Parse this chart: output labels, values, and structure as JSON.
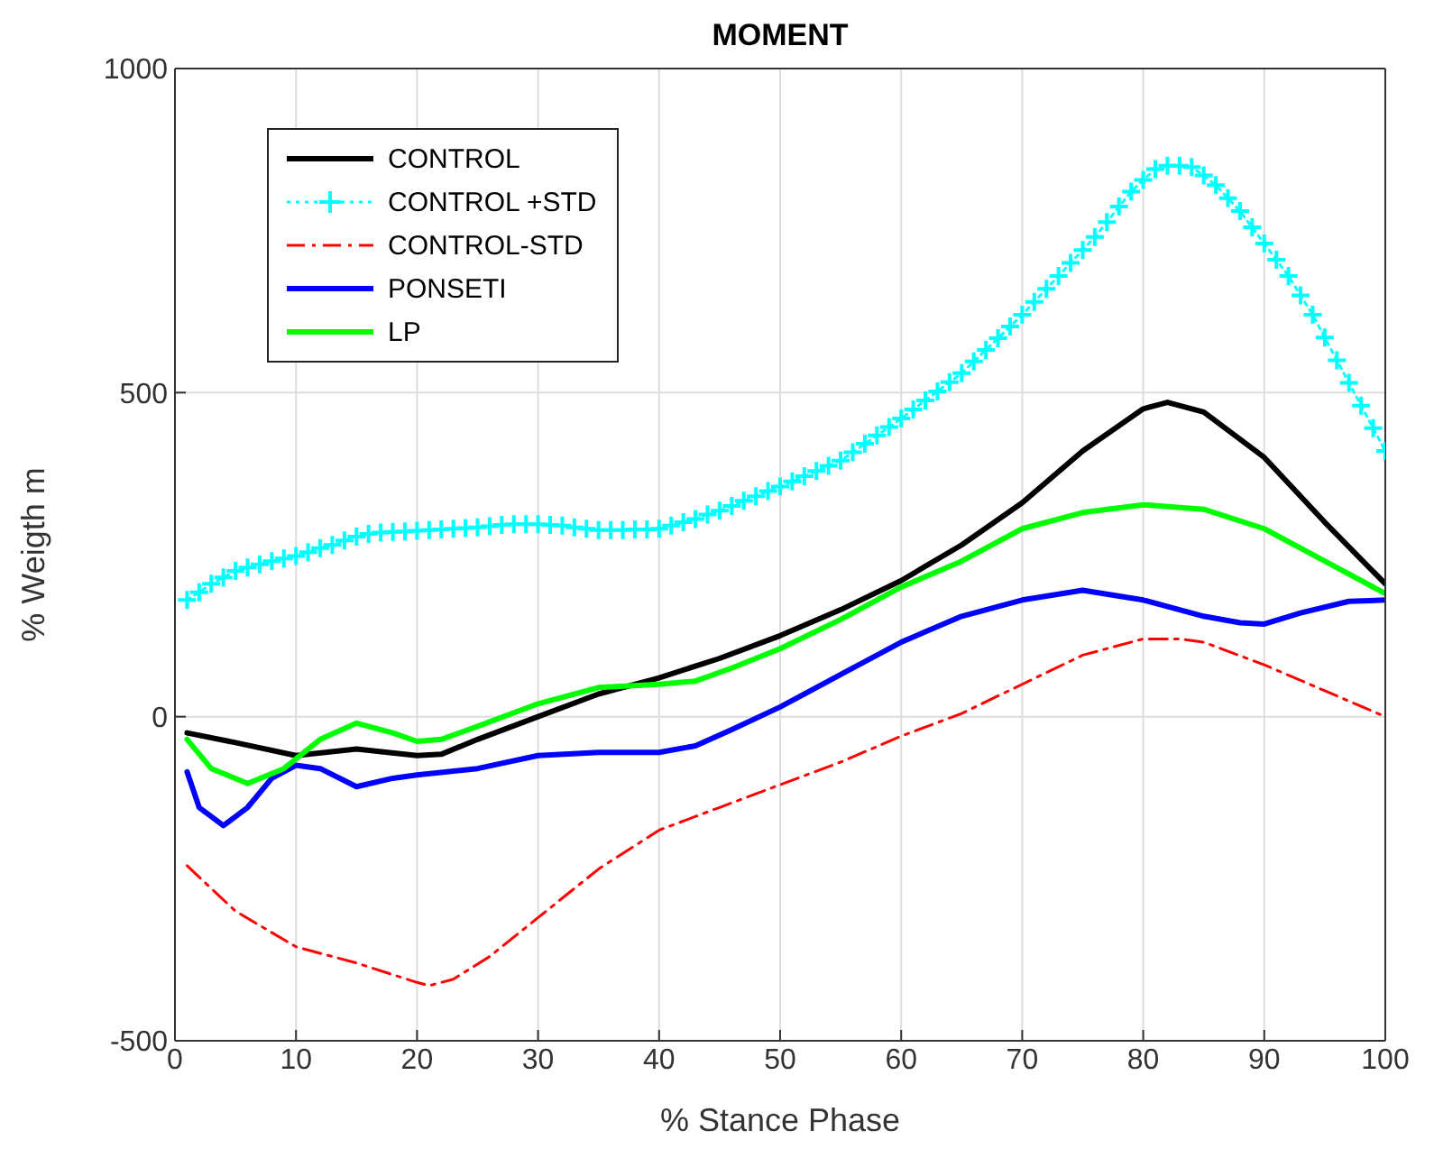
{
  "chart_data": {
    "type": "line",
    "title": "MOMENT",
    "xlabel": "% Stance Phase",
    "ylabel": "% Weigth m",
    "xlim": [
      0,
      100
    ],
    "xticks": [
      0,
      10,
      20,
      30,
      40,
      50,
      60,
      70,
      80,
      90,
      100
    ],
    "ylim": [
      -500,
      1000
    ],
    "yticks": [
      -500,
      0,
      500,
      1000
    ],
    "grid": true,
    "legend": "top left",
    "series": [
      {
        "name": "CONTROL",
        "color": "#000000",
        "line_style": "solid",
        "marker": "none",
        "x": [
          1,
          5,
          10,
          15,
          20,
          22,
          25,
          30,
          35,
          40,
          45,
          50,
          55,
          60,
          65,
          70,
          75,
          80,
          82,
          85,
          90,
          95,
          100
        ],
        "values": [
          -25,
          -40,
          -60,
          -50,
          -60,
          -58,
          -35,
          0,
          35,
          60,
          90,
          125,
          165,
          210,
          265,
          330,
          410,
          475,
          485,
          470,
          400,
          300,
          205
        ]
      },
      {
        "name": "CONTROL +STD",
        "color": "#00ffff",
        "line_style": "dotted",
        "marker": "cross",
        "x": [
          1,
          2,
          3,
          4,
          5,
          6,
          7,
          8,
          9,
          10,
          11,
          12,
          13,
          14,
          15,
          16,
          17,
          18,
          19,
          20,
          21,
          22,
          23,
          24,
          25,
          26,
          27,
          28,
          29,
          30,
          31,
          32,
          33,
          34,
          35,
          36,
          37,
          38,
          39,
          40,
          41,
          42,
          43,
          44,
          45,
          46,
          47,
          48,
          49,
          50,
          51,
          52,
          53,
          54,
          55,
          56,
          57,
          58,
          59,
          60,
          61,
          62,
          63,
          64,
          65,
          66,
          67,
          68,
          69,
          70,
          71,
          72,
          73,
          74,
          75,
          76,
          77,
          78,
          79,
          80,
          81,
          82,
          83,
          84,
          85,
          86,
          87,
          88,
          89,
          90,
          91,
          92,
          93,
          94,
          95,
          96,
          97,
          98,
          99,
          100
        ],
        "values": [
          180,
          192,
          205,
          215,
          225,
          230,
          235,
          240,
          244,
          248,
          254,
          260,
          265,
          272,
          278,
          282,
          284,
          285,
          286,
          287,
          288,
          289,
          290,
          291,
          292,
          294,
          296,
          297,
          297,
          297,
          296,
          295,
          292,
          290,
          288,
          288,
          288,
          289,
          289,
          290,
          295,
          300,
          305,
          312,
          318,
          325,
          333,
          340,
          348,
          355,
          363,
          371,
          379,
          387,
          395,
          408,
          421,
          434,
          447,
          460,
          474,
          488,
          502,
          516,
          530,
          548,
          566,
          584,
          602,
          620,
          640,
          660,
          680,
          700,
          720,
          740,
          763,
          787,
          810,
          828,
          845,
          850,
          850,
          848,
          835,
          820,
          800,
          780,
          755,
          730,
          705,
          680,
          650,
          620,
          585,
          550,
          515,
          480,
          445,
          410
        ]
      },
      {
        "name": "CONTROL-STD",
        "color": "#ff0000",
        "line_style": "dashed",
        "marker": "none",
        "x": [
          1,
          5,
          10,
          15,
          20,
          21,
          23,
          26,
          30,
          35,
          40,
          45,
          50,
          55,
          60,
          65,
          70,
          75,
          80,
          83,
          85,
          90,
          95,
          100
        ],
        "values": [
          -230,
          -300,
          -355,
          -380,
          -410,
          -415,
          -405,
          -370,
          -310,
          -235,
          -175,
          -140,
          -105,
          -70,
          -30,
          5,
          50,
          95,
          120,
          120,
          115,
          80,
          40,
          0
        ]
      },
      {
        "name": "PONSETI",
        "color": "#0000ff",
        "line_style": "solid",
        "marker": "none",
        "x": [
          1,
          2,
          4,
          6,
          8,
          10,
          12,
          15,
          18,
          20,
          25,
          30,
          35,
          40,
          43,
          46,
          50,
          55,
          60,
          65,
          70,
          75,
          80,
          85,
          88,
          90,
          93,
          97,
          100
        ],
        "values": [
          -85,
          -140,
          -168,
          -140,
          -95,
          -75,
          -80,
          -108,
          -95,
          -90,
          -80,
          -60,
          -55,
          -55,
          -45,
          -20,
          15,
          65,
          115,
          155,
          180,
          195,
          180,
          155,
          145,
          143,
          160,
          178,
          180
        ]
      },
      {
        "name": "LP",
        "color": "#00ff00",
        "line_style": "solid",
        "marker": "none",
        "x": [
          1,
          3,
          6,
          9,
          12,
          15,
          18,
          20,
          22,
          25,
          30,
          35,
          40,
          43,
          46,
          50,
          55,
          60,
          65,
          70,
          75,
          80,
          85,
          90,
          95,
          100
        ],
        "values": [
          -35,
          -80,
          -103,
          -80,
          -35,
          -10,
          -25,
          -38,
          -35,
          -15,
          20,
          45,
          50,
          55,
          75,
          105,
          150,
          200,
          240,
          290,
          315,
          327,
          320,
          290,
          240,
          190
        ]
      }
    ]
  }
}
